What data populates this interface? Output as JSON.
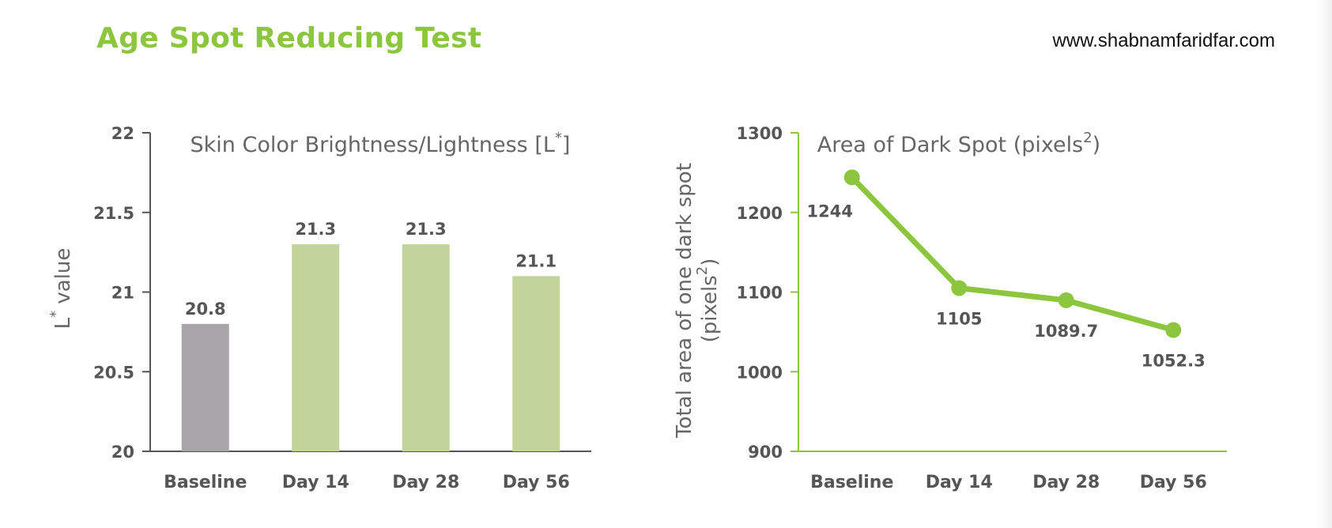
{
  "header": {
    "title": "Age Spot Reducing Test",
    "url": "www.shabnamfaridfar.com"
  },
  "colors": {
    "accent": "#8cc63f",
    "bar_light_green": "#c3d49a",
    "bar_gray": "#a7a5a8",
    "axis_dark": "#555555"
  },
  "chart_data": [
    {
      "type": "bar",
      "title": "Skin Color Brightness/Lightness [L",
      "title_sup": "*",
      "title_end": "]",
      "ylabel": "L",
      "ylabel_sup": "*",
      "ylabel_end": " value",
      "xlabel": "",
      "categories": [
        "Baseline",
        "Day 14",
        "Day 28",
        "Day 56"
      ],
      "values": [
        20.8,
        21.3,
        21.3,
        21.1
      ],
      "value_labels": [
        "20.8",
        "21.3",
        "21.3",
        "21.1"
      ],
      "bar_colors": [
        "#a7a5a8",
        "#c3d49a",
        "#c3d49a",
        "#c3d49a"
      ],
      "ylim": [
        20,
        22
      ],
      "yticks": [
        20,
        20.5,
        21,
        21.5,
        22
      ],
      "ytick_labels": [
        "20",
        "20.5",
        "21",
        "21.5",
        "22"
      ],
      "grid": false
    },
    {
      "type": "line",
      "title": "Area of Dark Spot (pixels",
      "title_sup": "2",
      "title_end": ")",
      "ylabel_line1": "Total area of one dark spot",
      "ylabel_line2": "(pixels",
      "ylabel_sup": "2",
      "ylabel_end": ")",
      "xlabel": "",
      "categories": [
        "Baseline",
        "Day 14",
        "Day 28",
        "Day 56"
      ],
      "values": [
        1244,
        1105,
        1089.7,
        1052.3
      ],
      "value_labels": [
        "1244",
        "1105",
        "1089.7",
        "1052.3"
      ],
      "line_color": "#8cc63f",
      "ylim": [
        900,
        1300
      ],
      "yticks": [
        900,
        1000,
        1100,
        1200,
        1300
      ],
      "ytick_labels": [
        "900",
        "1000",
        "1100",
        "1200",
        "1300"
      ],
      "grid": false
    }
  ]
}
